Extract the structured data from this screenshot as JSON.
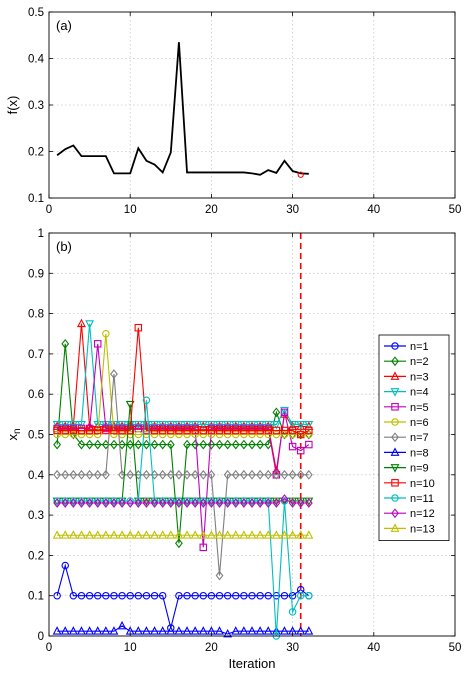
{
  "chart_data": [
    {
      "type": "line",
      "panel_label": "(a)",
      "xlabel": "",
      "ylabel": "f(x)",
      "xlim": [
        0,
        50
      ],
      "ylim": [
        0.1,
        0.5
      ],
      "xticks": [
        0,
        10,
        20,
        30,
        40,
        50
      ],
      "yticks": [
        0.1,
        0.2,
        0.3,
        0.4,
        0.5
      ],
      "grid": true,
      "series": [
        {
          "color": "#000000",
          "x": [
            1,
            2,
            3,
            4,
            5,
            6,
            7,
            8,
            9,
            10,
            11,
            12,
            13,
            14,
            15,
            16,
            17,
            18,
            19,
            20,
            21,
            22,
            23,
            24,
            25,
            26,
            27,
            28,
            29,
            30,
            31,
            32
          ],
          "y": [
            0.192,
            0.205,
            0.213,
            0.19,
            0.19,
            0.19,
            0.19,
            0.153,
            0.153,
            0.153,
            0.207,
            0.18,
            0.172,
            0.155,
            0.198,
            0.435,
            0.155,
            0.155,
            0.155,
            0.155,
            0.155,
            0.155,
            0.155,
            0.155,
            0.153,
            0.15,
            0.16,
            0.154,
            0.18,
            0.158,
            0.153,
            0.152
          ]
        }
      ],
      "highlight_point": {
        "x": 31,
        "y": 0.15,
        "color": "#ff0000"
      }
    },
    {
      "type": "line",
      "panel_label": "(b)",
      "xlabel": "Iteration",
      "ylabel": "x",
      "ylabel_subscript": "n",
      "xlim": [
        0,
        50
      ],
      "ylim": [
        0,
        1
      ],
      "xticks": [
        0,
        10,
        20,
        30,
        40,
        50
      ],
      "yticks": [
        0,
        0.1,
        0.2,
        0.3,
        0.4,
        0.5,
        0.6,
        0.7,
        0.8,
        0.9,
        1
      ],
      "grid": true,
      "legend_position": "right",
      "vline": {
        "x": 31,
        "color": "#ff0000",
        "style": "dashed"
      },
      "series": [
        {
          "name": "n=1",
          "color": "#0000ff",
          "marker": "circle",
          "x": [
            1,
            2,
            3,
            4,
            5,
            6,
            7,
            8,
            9,
            10,
            11,
            12,
            13,
            14,
            15,
            16,
            17,
            18,
            19,
            20,
            21,
            22,
            23,
            24,
            25,
            26,
            27,
            28,
            29,
            30,
            31,
            32
          ],
          "y": [
            0.1,
            0.175,
            0.1,
            0.1,
            0.1,
            0.1,
            0.1,
            0.1,
            0.1,
            0.1,
            0.1,
            0.1,
            0.1,
            0.1,
            0.02,
            0.1,
            0.1,
            0.1,
            0.1,
            0.1,
            0.1,
            0.1,
            0.1,
            0.1,
            0.1,
            0.1,
            0.1,
            0.1,
            0.1,
            0.1,
            0.115,
            0.1
          ]
        },
        {
          "name": "n=2",
          "color": "#008000",
          "marker": "diamond",
          "x": [
            1,
            2,
            3,
            4,
            5,
            6,
            7,
            8,
            9,
            10,
            11,
            12,
            13,
            14,
            15,
            16,
            17,
            18,
            19,
            20,
            21,
            22,
            23,
            24,
            25,
            26,
            27,
            28,
            29,
            30,
            31,
            32
          ],
          "y": [
            0.475,
            0.725,
            0.5,
            0.475,
            0.475,
            0.475,
            0.475,
            0.475,
            0.475,
            0.475,
            0.475,
            0.475,
            0.475,
            0.475,
            0.475,
            0.23,
            0.475,
            0.475,
            0.475,
            0.475,
            0.475,
            0.475,
            0.475,
            0.475,
            0.475,
            0.475,
            0.475,
            0.555,
            0.5,
            0.5,
            0.5,
            0.5
          ]
        },
        {
          "name": "n=3",
          "color": "#ff0000",
          "marker": "triangle-up",
          "x": [
            1,
            2,
            3,
            4,
            5,
            6,
            7,
            8,
            9,
            10,
            11,
            12,
            13,
            14,
            15,
            16,
            17,
            18,
            19,
            20,
            21,
            22,
            23,
            24,
            25,
            26,
            27,
            28,
            29,
            30,
            31,
            32
          ],
          "y": [
            0.52,
            0.52,
            0.52,
            0.775,
            0.52,
            0.52,
            0.52,
            0.52,
            0.52,
            0.52,
            0.52,
            0.52,
            0.52,
            0.52,
            0.52,
            0.52,
            0.52,
            0.52,
            0.52,
            0.52,
            0.52,
            0.52,
            0.52,
            0.52,
            0.52,
            0.52,
            0.52,
            0.41,
            0.55,
            0.52,
            0.52,
            0.52
          ]
        },
        {
          "name": "n=4",
          "color": "#00bfbf",
          "marker": "triangle-down",
          "x": [
            1,
            2,
            3,
            4,
            5,
            6,
            7,
            8,
            9,
            10,
            11,
            12,
            13,
            14,
            15,
            16,
            17,
            18,
            19,
            20,
            21,
            22,
            23,
            24,
            25,
            26,
            27,
            28,
            29,
            30,
            31,
            32
          ],
          "y": [
            0.525,
            0.525,
            0.525,
            0.525,
            0.775,
            0.525,
            0.525,
            0.525,
            0.525,
            0.525,
            0.525,
            0.525,
            0.525,
            0.525,
            0.525,
            0.525,
            0.525,
            0.525,
            0.525,
            0.525,
            0.525,
            0.525,
            0.525,
            0.525,
            0.525,
            0.525,
            0.525,
            0.525,
            0.56,
            0.525,
            0.525,
            0.525
          ]
        },
        {
          "name": "n=5",
          "color": "#bf00bf",
          "marker": "square",
          "x": [
            1,
            2,
            3,
            4,
            5,
            6,
            7,
            8,
            9,
            10,
            11,
            12,
            13,
            14,
            15,
            16,
            17,
            18,
            19,
            20,
            21,
            22,
            23,
            24,
            25,
            26,
            27,
            28,
            29,
            30,
            31,
            32
          ],
          "y": [
            0.515,
            0.515,
            0.515,
            0.515,
            0.515,
            0.725,
            0.515,
            0.515,
            0.515,
            0.515,
            0.515,
            0.515,
            0.515,
            0.515,
            0.515,
            0.515,
            0.515,
            0.515,
            0.22,
            0.515,
            0.515,
            0.515,
            0.515,
            0.515,
            0.515,
            0.515,
            0.515,
            0.4,
            0.555,
            0.47,
            0.46,
            0.475
          ]
        },
        {
          "name": "n=6",
          "color": "#bfbf00",
          "marker": "circle",
          "x": [
            1,
            2,
            3,
            4,
            5,
            6,
            7,
            8,
            9,
            10,
            11,
            12,
            13,
            14,
            15,
            16,
            17,
            18,
            19,
            20,
            21,
            22,
            23,
            24,
            25,
            26,
            27,
            28,
            29,
            30,
            31,
            32
          ],
          "y": [
            0.5,
            0.5,
            0.5,
            0.5,
            0.5,
            0.5,
            0.75,
            0.5,
            0.5,
            0.5,
            0.5,
            0.5,
            0.5,
            0.5,
            0.5,
            0.5,
            0.5,
            0.5,
            0.5,
            0.5,
            0.5,
            0.5,
            0.5,
            0.5,
            0.5,
            0.5,
            0.5,
            0.5,
            0.5,
            0.5,
            0.5,
            0.5
          ]
        },
        {
          "name": "n=7",
          "color": "#7f7f7f",
          "marker": "diamond",
          "x": [
            1,
            2,
            3,
            4,
            5,
            6,
            7,
            8,
            9,
            10,
            11,
            12,
            13,
            14,
            15,
            16,
            17,
            18,
            19,
            20,
            21,
            22,
            23,
            24,
            25,
            26,
            27,
            28,
            29,
            30,
            31,
            32
          ],
          "y": [
            0.4,
            0.4,
            0.4,
            0.4,
            0.4,
            0.4,
            0.4,
            0.65,
            0.4,
            0.4,
            0.4,
            0.4,
            0.4,
            0.4,
            0.4,
            0.4,
            0.4,
            0.4,
            0.4,
            0.4,
            0.15,
            0.4,
            0.4,
            0.4,
            0.4,
            0.4,
            0.4,
            0.4,
            0.4,
            0.4,
            0.4,
            0.4
          ]
        },
        {
          "name": "n=8",
          "color": "#0000ff",
          "marker": "triangle-up",
          "x": [
            1,
            2,
            3,
            4,
            5,
            6,
            7,
            8,
            9,
            10,
            11,
            12,
            13,
            14,
            15,
            16,
            17,
            18,
            19,
            20,
            21,
            22,
            23,
            24,
            25,
            26,
            27,
            28,
            29,
            30,
            31,
            32
          ],
          "y": [
            0.012,
            0.012,
            0.012,
            0.012,
            0.012,
            0.012,
            0.012,
            0.012,
            0.025,
            0.012,
            0.012,
            0.012,
            0.012,
            0.012,
            0.012,
            0.012,
            0.012,
            0.012,
            0.012,
            0.012,
            0.012,
            0.005,
            0.012,
            0.012,
            0.012,
            0.012,
            0.012,
            0.012,
            0.012,
            0.012,
            0.012,
            0.012
          ]
        },
        {
          "name": "n=9",
          "color": "#008000",
          "marker": "triangle-down",
          "x": [
            1,
            2,
            3,
            4,
            5,
            6,
            7,
            8,
            9,
            10,
            11,
            12,
            13,
            14,
            15,
            16,
            17,
            18,
            19,
            20,
            21,
            22,
            23,
            24,
            25,
            26,
            27,
            28,
            29,
            30,
            31,
            32
          ],
          "y": [
            0.335,
            0.335,
            0.335,
            0.335,
            0.335,
            0.335,
            0.335,
            0.335,
            0.335,
            0.575,
            0.335,
            0.335,
            0.335,
            0.335,
            0.335,
            0.335,
            0.335,
            0.335,
            0.335,
            0.335,
            0.335,
            0.335,
            0.335,
            0.335,
            0.335,
            0.335,
            0.335,
            0.335,
            0.335,
            0.335,
            0.335,
            0.335
          ]
        },
        {
          "name": "n=10",
          "color": "#ff0000",
          "marker": "square",
          "x": [
            1,
            2,
            3,
            4,
            5,
            6,
            7,
            8,
            9,
            10,
            11,
            12,
            13,
            14,
            15,
            16,
            17,
            18,
            19,
            20,
            21,
            22,
            23,
            24,
            25,
            26,
            27,
            28,
            29,
            30,
            31,
            32
          ],
          "y": [
            0.51,
            0.51,
            0.51,
            0.51,
            0.51,
            0.51,
            0.51,
            0.51,
            0.51,
            0.51,
            0.765,
            0.51,
            0.51,
            0.51,
            0.51,
            0.51,
            0.51,
            0.51,
            0.51,
            0.51,
            0.51,
            0.51,
            0.51,
            0.51,
            0.51,
            0.51,
            0.51,
            0.51,
            0.51,
            0.51,
            0.5,
            0.51
          ]
        },
        {
          "name": "n=11",
          "color": "#00bfbf",
          "marker": "circle",
          "x": [
            1,
            2,
            3,
            4,
            5,
            6,
            7,
            8,
            9,
            10,
            11,
            12,
            13,
            14,
            15,
            16,
            17,
            18,
            19,
            20,
            21,
            22,
            23,
            24,
            25,
            26,
            27,
            28,
            29,
            30,
            31,
            32
          ],
          "y": [
            0.335,
            0.335,
            0.335,
            0.335,
            0.335,
            0.335,
            0.335,
            0.335,
            0.335,
            0.335,
            0.335,
            0.585,
            0.335,
            0.335,
            0.335,
            0.335,
            0.335,
            0.335,
            0.335,
            0.335,
            0.335,
            0.335,
            0.335,
            0.335,
            0.335,
            0.335,
            0.335,
            0.0,
            0.335,
            0.06,
            0.1,
            0.1
          ]
        },
        {
          "name": "n=12",
          "color": "#bf00bf",
          "marker": "diamond",
          "x": [
            1,
            2,
            3,
            4,
            5,
            6,
            7,
            8,
            9,
            10,
            11,
            12,
            13,
            14,
            15,
            16,
            17,
            18,
            19,
            20,
            21,
            22,
            23,
            24,
            25,
            26,
            27,
            28,
            29,
            30,
            31,
            32
          ],
          "y": [
            0.33,
            0.33,
            0.33,
            0.33,
            0.33,
            0.33,
            0.33,
            0.33,
            0.33,
            0.33,
            0.33,
            0.33,
            0.33,
            0.33,
            0.33,
            0.33,
            0.33,
            0.33,
            0.33,
            0.33,
            0.33,
            0.33,
            0.33,
            0.33,
            0.33,
            0.33,
            0.33,
            0.33,
            0.34,
            0.33,
            0.33,
            0.33
          ]
        },
        {
          "name": "n=13",
          "color": "#bfbf00",
          "marker": "triangle-up",
          "x": [
            1,
            2,
            3,
            4,
            5,
            6,
            7,
            8,
            9,
            10,
            11,
            12,
            13,
            14,
            15,
            16,
            17,
            18,
            19,
            20,
            21,
            22,
            23,
            24,
            25,
            26,
            27,
            28,
            29,
            30,
            31,
            32
          ],
          "y": [
            0.25,
            0.25,
            0.25,
            0.25,
            0.25,
            0.25,
            0.25,
            0.25,
            0.25,
            0.25,
            0.25,
            0.25,
            0.25,
            0.25,
            0.25,
            0.25,
            0.25,
            0.25,
            0.25,
            0.25,
            0.25,
            0.25,
            0.25,
            0.25,
            0.25,
            0.25,
            0.25,
            0.25,
            0.25,
            0.25,
            0.25,
            0.25
          ]
        }
      ]
    }
  ]
}
